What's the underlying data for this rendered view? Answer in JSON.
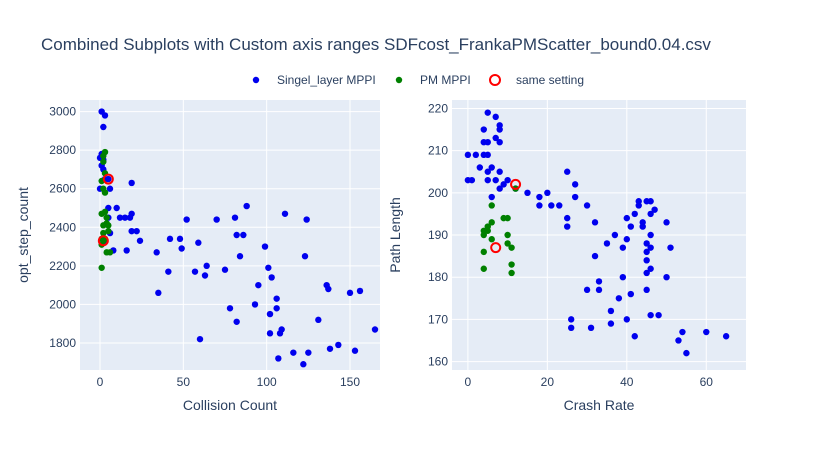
{
  "chart_data": {
    "type": "scatter",
    "title": "Combined Subplots with Custom axis ranges SDFcost_FrankaPMScatter_bound0.04.csv",
    "legend": {
      "placement": "top-center",
      "items": [
        {
          "name": "Singel_layer MPPI",
          "color": "#0000ee",
          "marker": "filled-circle"
        },
        {
          "name": "PM MPPI",
          "color": "#008000",
          "marker": "filled-circle"
        },
        {
          "name": "same setting",
          "color": "#ff0000",
          "marker": "hollow-circle"
        }
      ]
    },
    "subplots": [
      {
        "xlabel": "Collision Count",
        "ylabel": "opt_step_count",
        "xlim": [
          -12,
          168
        ],
        "ylim": [
          1660,
          3060
        ],
        "xticks": [
          0,
          50,
          100,
          150
        ],
        "yticks": [
          1800,
          2000,
          2200,
          2400,
          2600,
          2800,
          3000
        ],
        "grid": true,
        "series": [
          {
            "name": "Singel_layer MPPI",
            "points": [
              [
                1,
                3000
              ],
              [
                3,
                2980
              ],
              [
                2,
                2920
              ],
              [
                1,
                2780
              ],
              [
                0,
                2760
              ],
              [
                2,
                2750
              ],
              [
                1,
                2720
              ],
              [
                2,
                2700
              ],
              [
                0,
                2600
              ],
              [
                3,
                2650
              ],
              [
                5,
                2650
              ],
              [
                6,
                2600
              ],
              [
                5,
                2500
              ],
              [
                5,
                2450
              ],
              [
                6,
                2370
              ],
              [
                3,
                2330
              ],
              [
                8,
                2280
              ],
              [
                10,
                2500
              ],
              [
                12,
                2450
              ],
              [
                15,
                2450
              ],
              [
                16,
                2280
              ],
              [
                18,
                2450
              ],
              [
                19,
                2470
              ],
              [
                19,
                2630
              ],
              [
                19,
                2380
              ],
              [
                22,
                2380
              ],
              [
                24,
                2330
              ],
              [
                34,
                2270
              ],
              [
                35,
                2060
              ],
              [
                41,
                2170
              ],
              [
                42,
                2340
              ],
              [
                48,
                2340
              ],
              [
                49,
                2290
              ],
              [
                52,
                2440
              ],
              [
                57,
                2170
              ],
              [
                59,
                2320
              ],
              [
                60,
                1820
              ],
              [
                63,
                2150
              ],
              [
                64,
                2200
              ],
              [
                70,
                2440
              ],
              [
                75,
                2180
              ],
              [
                78,
                1980
              ],
              [
                81,
                2450
              ],
              [
                82,
                2360
              ],
              [
                82,
                1910
              ],
              [
                84,
                2250
              ],
              [
                86,
                2360
              ],
              [
                88,
                2510
              ],
              [
                93,
                2000
              ],
              [
                95,
                2100
              ],
              [
                99,
                2300
              ],
              [
                101,
                2190
              ],
              [
                102,
                1850
              ],
              [
                102,
                1950
              ],
              [
                103,
                2140
              ],
              [
                106,
                1980
              ],
              [
                106,
                2030
              ],
              [
                107,
                1720
              ],
              [
                108,
                1850
              ],
              [
                109,
                1870
              ],
              [
                111,
                2470
              ],
              [
                116,
                1750
              ],
              [
                122,
                1690
              ],
              [
                123,
                2250
              ],
              [
                124,
                2440
              ],
              [
                125,
                1750
              ],
              [
                131,
                1920
              ],
              [
                136,
                2100
              ],
              [
                137,
                2080
              ],
              [
                138,
                1770
              ],
              [
                143,
                1790
              ],
              [
                150,
                2060
              ],
              [
                153,
                1760
              ],
              [
                156,
                2070
              ],
              [
                165,
                1870
              ]
            ]
          },
          {
            "name": "PM MPPI",
            "points": [
              [
                3,
                2790
              ],
              [
                2,
                2770
              ],
              [
                2,
                2740
              ],
              [
                3,
                2680
              ],
              [
                1,
                2640
              ],
              [
                2,
                2600
              ],
              [
                3,
                2580
              ],
              [
                3,
                2480
              ],
              [
                1,
                2470
              ],
              [
                4,
                2450
              ],
              [
                4,
                2420
              ],
              [
                5,
                2410
              ],
              [
                2,
                2410
              ],
              [
                2,
                2370
              ],
              [
                5,
                2380
              ],
              [
                1,
                2340
              ],
              [
                3,
                2340
              ],
              [
                1,
                2310
              ],
              [
                4,
                2270
              ],
              [
                6,
                2270
              ],
              [
                1,
                2190
              ],
              [
                2,
                2330
              ]
            ]
          },
          {
            "name": "same setting",
            "points": [
              [
                5,
                2650
              ],
              [
                2,
                2330
              ]
            ]
          }
        ]
      },
      {
        "xlabel": "Crash Rate",
        "ylabel": "Path Length",
        "xlim": [
          -4,
          70
        ],
        "ylim": [
          158,
          222
        ],
        "xticks": [
          0,
          20,
          40,
          60
        ],
        "yticks": [
          160,
          170,
          180,
          190,
          200,
          210,
          220
        ],
        "grid": true,
        "series": [
          {
            "name": "Singel_layer MPPI",
            "points": [
              [
                5,
                219
              ],
              [
                7,
                218
              ],
              [
                8,
                216
              ],
              [
                8,
                215
              ],
              [
                4,
                215
              ],
              [
                4,
                212
              ],
              [
                5,
                212
              ],
              [
                7,
                213
              ],
              [
                8,
                212
              ],
              [
                0,
                209
              ],
              [
                2,
                209
              ],
              [
                4,
                209
              ],
              [
                5,
                209
              ],
              [
                3,
                206
              ],
              [
                5,
                205
              ],
              [
                6,
                206
              ],
              [
                8,
                205
              ],
              [
                7,
                203
              ],
              [
                5,
                203
              ],
              [
                0,
                203
              ],
              [
                1,
                203
              ],
              [
                10,
                203
              ],
              [
                6,
                199
              ],
              [
                8,
                201
              ],
              [
                9,
                202
              ],
              [
                12,
                201
              ],
              [
                15,
                200
              ],
              [
                18,
                199
              ],
              [
                20,
                200
              ],
              [
                21,
                197
              ],
              [
                18,
                197
              ],
              [
                23,
                197
              ],
              [
                25,
                205
              ],
              [
                27,
                202
              ],
              [
                27,
                199
              ],
              [
                25,
                194
              ],
              [
                25,
                192
              ],
              [
                30,
                197
              ],
              [
                26,
                170
              ],
              [
                26,
                168
              ],
              [
                30,
                177
              ],
              [
                31,
                168
              ],
              [
                32,
                185
              ],
              [
                32,
                193
              ],
              [
                33,
                179
              ],
              [
                33,
                177
              ],
              [
                35,
                188
              ],
              [
                36,
                172
              ],
              [
                36,
                169
              ],
              [
                37,
                190
              ],
              [
                38,
                175
              ],
              [
                39,
                180
              ],
              [
                39,
                187
              ],
              [
                40,
                189
              ],
              [
                40,
                194
              ],
              [
                40,
                170
              ],
              [
                41,
                176
              ],
              [
                41,
                192
              ],
              [
                42,
                195
              ],
              [
                42,
                166
              ],
              [
                43,
                197
              ],
              [
                43,
                198
              ],
              [
                44,
                193
              ],
              [
                44,
                192
              ],
              [
                45,
                198
              ],
              [
                45,
                188
              ],
              [
                45,
                186
              ],
              [
                45,
                184
              ],
              [
                45,
                181
              ],
              [
                45,
                177
              ],
              [
                46,
                198
              ],
              [
                46,
                195
              ],
              [
                46,
                190
              ],
              [
                46,
                187
              ],
              [
                46,
                182
              ],
              [
                46,
                171
              ],
              [
                47,
                196
              ],
              [
                48,
                171
              ],
              [
                50,
                180
              ],
              [
                50,
                193
              ],
              [
                51,
                187
              ],
              [
                53,
                165
              ],
              [
                54,
                167
              ],
              [
                55,
                162
              ],
              [
                60,
                167
              ],
              [
                65,
                166
              ]
            ]
          },
          {
            "name": "PM MPPI",
            "points": [
              [
                6,
                197
              ],
              [
                6,
                193
              ],
              [
                5,
                192
              ],
              [
                5,
                191
              ],
              [
                4,
                191
              ],
              [
                4,
                190
              ],
              [
                4,
                186
              ],
              [
                4,
                182
              ],
              [
                6,
                189
              ],
              [
                9,
                194
              ],
              [
                10,
                194
              ],
              [
                10,
                190
              ],
              [
                10,
                188
              ],
              [
                11,
                187
              ],
              [
                11,
                183
              ],
              [
                11,
                181
              ],
              [
                12,
                201
              ]
            ]
          },
          {
            "name": "same setting",
            "points": [
              [
                12,
                202
              ],
              [
                7,
                187
              ]
            ]
          }
        ]
      }
    ]
  }
}
